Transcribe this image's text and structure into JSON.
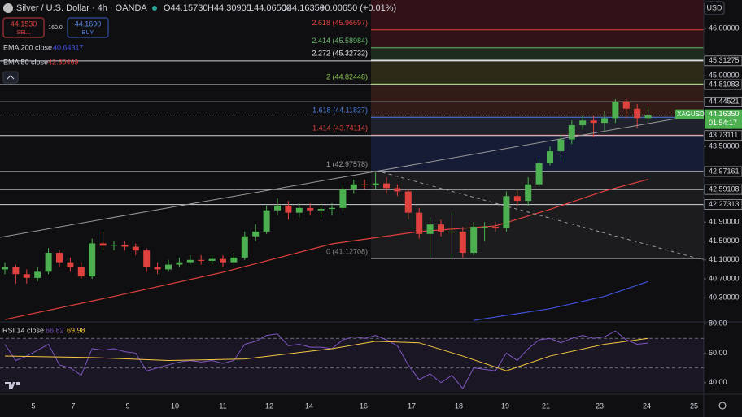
{
  "header": {
    "symbol": "Silver / U.S. Dollar · 4h · OANDA",
    "open": "O44.15730",
    "high": "H44.30905",
    "low": "L44.06500",
    "close": "C44.16350",
    "change": "+0.00650 (+0.01%)",
    "sell_price": "44.1530",
    "sell": "SELL",
    "spread": "160.0",
    "buy_price": "44.1690",
    "buy": "BUY",
    "currency": "USD"
  },
  "chart_data": {
    "type": "candlestick",
    "up_color": "#4caf50",
    "down_color": "#e0413e",
    "candles": [
      [
        40.9,
        41.05,
        40.8,
        40.95
      ],
      [
        40.95,
        41.0,
        40.6,
        40.8
      ],
      [
        40.8,
        40.9,
        40.6,
        40.72
      ],
      [
        40.72,
        40.95,
        40.65,
        40.85
      ],
      [
        40.85,
        41.35,
        40.8,
        41.25
      ],
      [
        41.25,
        41.3,
        40.95,
        41.05
      ],
      [
        41.05,
        41.15,
        40.85,
        40.95
      ],
      [
        40.95,
        41.05,
        40.7,
        40.75
      ],
      [
        40.75,
        41.55,
        40.7,
        41.45
      ],
      [
        41.45,
        41.7,
        41.3,
        41.4
      ],
      [
        41.4,
        41.5,
        41.3,
        41.42
      ],
      [
        41.42,
        41.5,
        41.3,
        41.38
      ],
      [
        41.38,
        41.45,
        41.2,
        41.3
      ],
      [
        41.3,
        41.35,
        40.85,
        40.95
      ],
      [
        40.95,
        41.05,
        40.8,
        40.9
      ],
      [
        40.9,
        41.1,
        40.85,
        41.0
      ],
      [
        41.0,
        41.15,
        40.95,
        41.05
      ],
      [
        41.05,
        41.2,
        41.0,
        41.1
      ],
      [
        41.1,
        41.2,
        41.0,
        41.08
      ],
      [
        41.08,
        41.2,
        41.0,
        41.12
      ],
      [
        41.12,
        41.2,
        40.95,
        41.05
      ],
      [
        41.05,
        41.25,
        41.0,
        41.15
      ],
      [
        41.15,
        41.7,
        41.1,
        41.6
      ],
      [
        41.6,
        41.85,
        41.5,
        41.7
      ],
      [
        41.7,
        42.25,
        41.65,
        42.15
      ],
      [
        42.15,
        42.4,
        42.05,
        42.25
      ],
      [
        42.25,
        42.35,
        41.95,
        42.1
      ],
      [
        42.1,
        42.3,
        42.0,
        42.2
      ],
      [
        42.2,
        42.3,
        42.05,
        42.15
      ],
      [
        42.15,
        42.3,
        42.0,
        42.18
      ],
      [
        42.18,
        42.3,
        42.05,
        42.2
      ],
      [
        42.2,
        42.7,
        42.15,
        42.6
      ],
      [
        42.6,
        42.8,
        42.5,
        42.7
      ],
      [
        42.7,
        42.8,
        42.6,
        42.68
      ],
      [
        42.68,
        42.95,
        42.6,
        42.72
      ],
      [
        42.72,
        42.85,
        42.5,
        42.62
      ],
      [
        42.62,
        42.7,
        42.45,
        42.55
      ],
      [
        42.55,
        42.6,
        41.95,
        42.1
      ],
      [
        42.1,
        42.2,
        41.55,
        41.65
      ],
      [
        41.65,
        42.0,
        41.15,
        41.85
      ],
      [
        41.85,
        41.95,
        41.6,
        41.7
      ],
      [
        41.7,
        42.1,
        41.15,
        41.7
      ],
      [
        41.7,
        41.8,
        41.15,
        41.25
      ],
      [
        41.25,
        41.9,
        41.2,
        41.8
      ],
      [
        41.8,
        41.9,
        41.5,
        41.8
      ],
      [
        41.8,
        41.9,
        41.7,
        41.78
      ],
      [
        41.78,
        42.55,
        41.7,
        42.45
      ],
      [
        42.45,
        42.6,
        42.25,
        42.35
      ],
      [
        42.35,
        42.85,
        42.25,
        42.7
      ],
      [
        42.7,
        43.25,
        42.65,
        43.15
      ],
      [
        43.15,
        43.5,
        43.1,
        43.4
      ],
      [
        43.4,
        43.75,
        43.2,
        43.65
      ],
      [
        43.65,
        44.05,
        43.55,
        43.95
      ],
      [
        43.95,
        44.15,
        43.85,
        44.05
      ],
      [
        44.05,
        44.15,
        43.7,
        44.0
      ],
      [
        44.0,
        44.25,
        43.8,
        44.1
      ],
      [
        44.1,
        44.5,
        44.0,
        44.45
      ],
      [
        44.45,
        44.5,
        44.1,
        44.3
      ],
      [
        44.3,
        44.4,
        43.9,
        44.1
      ],
      [
        44.1,
        44.35,
        44.0,
        44.1635
      ]
    ],
    "ylim": [
      40.03,
      46.6
    ],
    "yticks": [
      {
        "value": 46,
        "label": "46.00000"
      },
      {
        "value": 45,
        "label": "45.00000"
      },
      {
        "value": 43.5,
        "label": "43.50000"
      },
      {
        "value": 41.9,
        "label": "41.90000"
      },
      {
        "value": 41.5,
        "label": "41.50000"
      },
      {
        "value": 41.1,
        "label": "41.10000"
      },
      {
        "value": 40.7,
        "label": "40.70000"
      },
      {
        "value": 40.3,
        "label": "40.30000"
      }
    ],
    "xticks": [
      "5",
      "7",
      "9",
      "10",
      "11",
      "12",
      "14",
      "16",
      "17",
      "18",
      "19",
      "21",
      "23",
      "24",
      "25"
    ],
    "ema_200": {
      "name": "EMA 200 close",
      "value": 40.64317,
      "color": "#3f51d8",
      "x": [
        43,
        50,
        55,
        59
      ],
      "values": [
        39.82,
        40.07,
        40.33,
        40.64317
      ]
    },
    "ema_50": {
      "name": "EMA 50 close",
      "value": 42.80469,
      "color": "#e0413e",
      "x": [
        0,
        10,
        20,
        30,
        38,
        45,
        50,
        55,
        59
      ],
      "values": [
        39.84,
        40.33,
        40.84,
        41.44,
        41.7,
        41.82,
        42.17,
        42.56,
        42.80469
      ]
    },
    "fib_levels": [
      {
        "value": 41.12708,
        "label": "0 (41.12708)",
        "color": "#8a8a8a"
      },
      {
        "value": 42.97578,
        "label": "1 (42.97578)",
        "color": "#9a9a9a"
      },
      {
        "value": 43.74114,
        "label": "1.414 (43.74114)",
        "color": "#e0413e"
      },
      {
        "value": 44.11827,
        "label": "1.618 (44.11827)",
        "color": "#4a7fe0"
      },
      {
        "value": 44.82448,
        "label": "2 (44.82448)",
        "color": "#8bc34a"
      },
      {
        "value": 45.32732,
        "label": "2.272 (45.32732)",
        "color": "#e8e8e8"
      },
      {
        "value": 45.58984,
        "label": "2.414 (45.58984)",
        "color": "#66bb6a"
      },
      {
        "value": 45.96697,
        "label": "2.618 (45.96697)",
        "color": "#e0413e"
      }
    ],
    "fib_band_colors": [
      "rgba(110,110,110,0.14)",
      "rgba(40,60,140,0.30)",
      "rgba(70,80,110,0.30)",
      "rgba(130,60,40,0.30)",
      "rgba(110,110,40,0.30)",
      "rgba(60,110,60,0.30)",
      "rgba(130,30,40,0.30)"
    ],
    "level_lines": [
      {
        "value": 45.31275,
        "label": "45.31275"
      },
      {
        "value": 44.81083,
        "label": "44.81083"
      },
      {
        "value": 44.44521,
        "label": "44.44521"
      },
      {
        "value": 43.73111,
        "label": "43.73111"
      },
      {
        "value": 42.97161,
        "label": "42.97161"
      },
      {
        "value": 42.59108,
        "label": "42.59108"
      },
      {
        "value": 42.27313,
        "label": "42.27313"
      }
    ],
    "last_price": {
      "symbol": "XAGUSD",
      "value": 44.1635,
      "label": "44.16350",
      "countdown": "01:54:17"
    },
    "rsi": {
      "name": "RSI 14 close",
      "value": 66.82,
      "ma_value": 69.98,
      "color": "#7e57c2",
      "ma_color": "#f5c842",
      "values": [
        66,
        55,
        58,
        62,
        66,
        52,
        50,
        45,
        63,
        62,
        63,
        61,
        60,
        48,
        50,
        52,
        54,
        55,
        54,
        55,
        53,
        55,
        66,
        68,
        72,
        73,
        65,
        66,
        64,
        64,
        63,
        69,
        71,
        70,
        72,
        69,
        65,
        52,
        42,
        46,
        40,
        45,
        36,
        50,
        49,
        48,
        60,
        55,
        63,
        69,
        70,
        67,
        70,
        72,
        70,
        71,
        75,
        69,
        66,
        66.82
      ],
      "ma_x": [
        0,
        8,
        15,
        22,
        30,
        34,
        38,
        42,
        46,
        50,
        55,
        59
      ],
      "ma_values": [
        58,
        57,
        55,
        56,
        63,
        68,
        67,
        58,
        48,
        58,
        66,
        69.98
      ],
      "ylim": [
        33.8,
        80.6
      ],
      "bands": [
        70,
        50
      ],
      "yticks": [
        {
          "value": 80,
          "label": "80.00"
        },
        {
          "value": 60,
          "label": "60.00"
        },
        {
          "value": 40,
          "label": "40.00"
        }
      ]
    }
  }
}
